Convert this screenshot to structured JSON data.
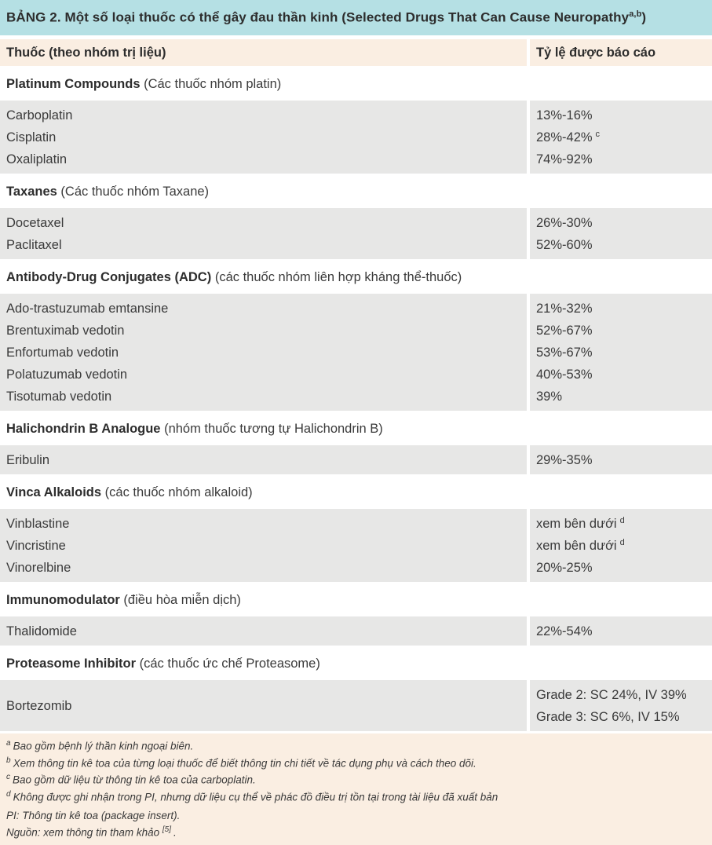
{
  "colors": {
    "title_bg": "#b5e0e4",
    "column_header_bg": "#faeee2",
    "row_bg": "#e7e7e6",
    "footnote_bg": "#faeee2",
    "text": "#3a3a3a"
  },
  "table": {
    "title": {
      "text": "BẢNG 2. Một số loại thuốc có thể gây đau thần kinh (Selected Drugs That Can Cause Neuropathy",
      "sup": "a,b",
      "close": ")"
    },
    "columns": {
      "drug": "Thuốc (theo nhóm trị liệu)",
      "rate": "Tỷ lệ được báo cáo"
    },
    "sections": [
      {
        "group_en": "Platinum Compounds",
        "group_vi": "(Các thuốc nhóm platin)",
        "rows": [
          {
            "drug": "Carboplatin",
            "rate": "13%-16%",
            "rate_sup": ""
          },
          {
            "drug": "Cisplatin",
            "rate": "28%-42%",
            "rate_sup": "c"
          },
          {
            "drug": "Oxaliplatin",
            "rate": "74%-92%",
            "rate_sup": ""
          }
        ]
      },
      {
        "group_en": "Taxanes",
        "group_vi": "(Các thuốc nhóm Taxane)",
        "rows": [
          {
            "drug": "Docetaxel",
            "rate": "26%-30%",
            "rate_sup": ""
          },
          {
            "drug": "Paclitaxel",
            "rate": "52%-60%",
            "rate_sup": ""
          }
        ]
      },
      {
        "group_en": "Antibody-Drug Conjugates (ADC)",
        "group_vi": "(các thuốc nhóm liên hợp kháng thể-thuốc)",
        "rows": [
          {
            "drug": "Ado-trastuzumab emtansine",
            "rate": "21%-32%",
            "rate_sup": ""
          },
          {
            "drug": "Brentuximab vedotin",
            "rate": "52%-67%",
            "rate_sup": ""
          },
          {
            "drug": "Enfortumab vedotin",
            "rate": "53%-67%",
            "rate_sup": ""
          },
          {
            "drug": "Polatuzumab vedotin",
            "rate": "40%-53%",
            "rate_sup": ""
          },
          {
            "drug": "Tisotumab vedotin",
            "rate": "39%",
            "rate_sup": ""
          }
        ]
      },
      {
        "group_en": "Halichondrin B Analogue",
        "group_vi": "(nhóm thuốc tương tự Halichondrin B)",
        "rows": [
          {
            "drug": "Eribulin",
            "rate": "29%-35%",
            "rate_sup": ""
          }
        ]
      },
      {
        "group_en": "Vinca Alkaloids",
        "group_vi": "(các thuốc nhóm alkaloid)",
        "rows": [
          {
            "drug": "Vinblastine",
            "rate": "xem bên dưới",
            "rate_sup": "d"
          },
          {
            "drug": "Vincristine",
            "rate": "xem bên dưới",
            "rate_sup": "d"
          },
          {
            "drug": "Vinorelbine",
            "rate": "20%-25%",
            "rate_sup": ""
          }
        ]
      },
      {
        "group_en": "Immunomodulator",
        "group_vi": "(điều hòa miễn dịch)",
        "rows": [
          {
            "drug": "Thalidomide",
            "rate": "22%-54%",
            "rate_sup": ""
          }
        ]
      },
      {
        "group_en": "Proteasome Inhibitor",
        "group_vi": "(các thuốc ức chế Proteasome)",
        "rows": [
          {
            "drug": "Bortezomib",
            "rate_lines": [
              "Grade 2: SC 24%, IV 39%",
              "Grade 3: SC 6%, IV 15%"
            ]
          }
        ]
      }
    ],
    "footnotes": [
      {
        "sup": "a",
        "text": "Bao gồm bệnh lý thần kinh ngoại biên."
      },
      {
        "sup": "b",
        "text": "Xem thông tin kê toa của từng loại thuốc để biết thông tin chi tiết về tác dụng phụ và cách theo dõi."
      },
      {
        "sup": "c",
        "text": "Bao gồm dữ liệu từ thông tin kê toa của carboplatin."
      },
      {
        "sup": "d",
        "text": "Không được ghi nhận trong PI, nhưng dữ liệu cụ thể về phác đồ điều trị tồn tại trong tài liệu đã xuất bản"
      }
    ],
    "abbreviation": "PI: Thông tin kê toa (package insert).",
    "source": {
      "text": "Nguồn: xem thông tin tham khảo",
      "ref": "[5]",
      "period": "."
    }
  }
}
